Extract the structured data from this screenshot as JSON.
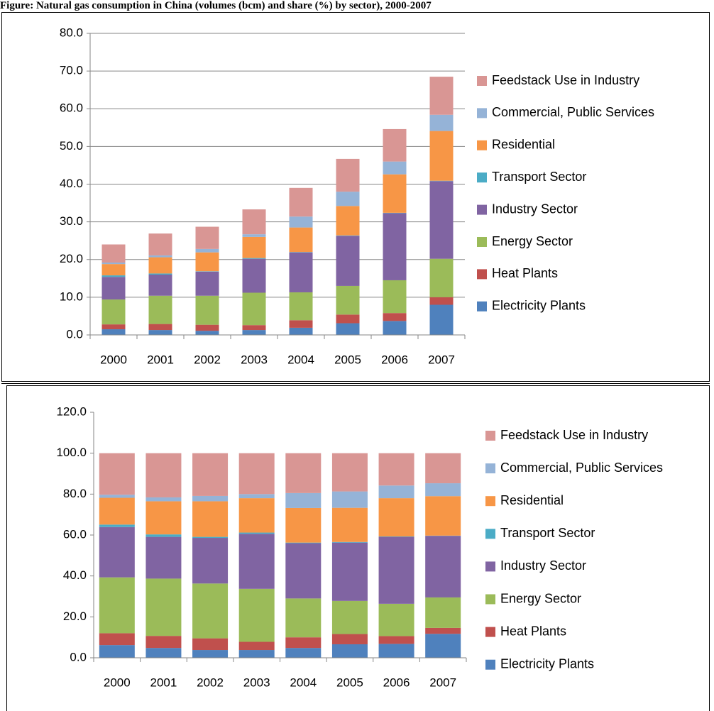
{
  "title": "Figure: Natural gas consumption in China (volumes (bcm) and share (%) by sector), 2000-2007",
  "chart_data": [
    {
      "type": "stacked_bar",
      "categories": [
        "2000",
        "2001",
        "2002",
        "2003",
        "2004",
        "2005",
        "2006",
        "2007"
      ],
      "ylim": [
        0,
        80
      ],
      "yticks": [
        {
          "value": 0,
          "label": "0.0"
        },
        {
          "value": 10,
          "label": "10.0"
        },
        {
          "value": 20,
          "label": "20.0"
        },
        {
          "value": 30,
          "label": "30.0"
        },
        {
          "value": 40,
          "label": "40.0"
        },
        {
          "value": 50,
          "label": "50.0"
        },
        {
          "value": 60,
          "label": "60.0"
        },
        {
          "value": 70,
          "label": "70.0"
        },
        {
          "value": 80,
          "label": "80.0"
        }
      ],
      "grid": true,
      "legend": "right",
      "series": [
        {
          "name": "Electricity Plants",
          "color": "#4f81bd",
          "values": [
            1.5,
            1.3,
            1.1,
            1.3,
            1.9,
            3.1,
            3.7,
            8.0
          ]
        },
        {
          "name": "Heat Plants",
          "color": "#c0504d",
          "values": [
            1.3,
            1.6,
            1.6,
            1.3,
            2.0,
            2.3,
            2.1,
            2.0
          ]
        },
        {
          "name": "Energy Sector",
          "color": "#9bbb59",
          "values": [
            6.6,
            7.5,
            7.7,
            8.6,
            7.4,
            7.6,
            8.7,
            10.2
          ]
        },
        {
          "name": "Industry Sector",
          "color": "#8064a2",
          "values": [
            6.0,
            5.6,
            6.4,
            9.0,
            10.6,
            13.3,
            17.8,
            20.6
          ]
        },
        {
          "name": "Transport Sector",
          "color": "#4bacc6",
          "values": [
            0.4,
            0.3,
            0.1,
            0.2,
            0.1,
            0.1,
            0.1,
            0.1
          ]
        },
        {
          "name": "Residential",
          "color": "#f79646",
          "values": [
            3.0,
            4.3,
            5.0,
            5.6,
            6.5,
            7.8,
            10.2,
            13.2
          ]
        },
        {
          "name": "Commercial, Public Services",
          "color": "#95b3d7",
          "values": [
            0.4,
            0.5,
            0.9,
            0.7,
            2.9,
            3.8,
            3.4,
            4.3
          ]
        },
        {
          "name": "Feedstack Use in Industry",
          "color": "#d99694",
          "values": [
            4.8,
            5.8,
            5.9,
            6.6,
            7.6,
            8.7,
            8.6,
            10.1
          ]
        }
      ]
    },
    {
      "type": "stacked_bar",
      "categories": [
        "2000",
        "2001",
        "2002",
        "2003",
        "2004",
        "2005",
        "2006",
        "2007"
      ],
      "ylim": [
        0,
        120
      ],
      "yticks": [
        {
          "value": 0,
          "label": "0.0"
        },
        {
          "value": 20,
          "label": "20.0"
        },
        {
          "value": 40,
          "label": "40.0"
        },
        {
          "value": 60,
          "label": "60.0"
        },
        {
          "value": 80,
          "label": "80.0"
        },
        {
          "value": 100,
          "label": "100.0"
        },
        {
          "value": 120,
          "label": "120.0"
        }
      ],
      "grid": false,
      "legend": "right",
      "series": [
        {
          "name": "Electricity Plants",
          "color": "#4f81bd",
          "values": [
            6.2,
            4.8,
            3.8,
            3.8,
            4.8,
            6.6,
            6.8,
            11.7
          ]
        },
        {
          "name": "Heat Plants",
          "color": "#c0504d",
          "values": [
            5.8,
            5.9,
            5.7,
            4.0,
            5.2,
            5.0,
            3.8,
            2.9
          ]
        },
        {
          "name": "Energy Sector",
          "color": "#9bbb59",
          "values": [
            27.3,
            28.0,
            26.8,
            25.9,
            19.0,
            16.2,
            15.8,
            14.9
          ]
        },
        {
          "name": "Industry Sector",
          "color": "#8064a2",
          "values": [
            24.6,
            20.4,
            22.3,
            26.9,
            27.0,
            28.5,
            32.7,
            30.1
          ]
        },
        {
          "name": "Transport Sector",
          "color": "#4bacc6",
          "values": [
            1.2,
            1.2,
            0.5,
            0.6,
            0.3,
            0.3,
            0.2,
            0.1
          ]
        },
        {
          "name": "Residential",
          "color": "#f79646",
          "values": [
            13.1,
            16.2,
            17.4,
            16.8,
            16.9,
            16.7,
            18.7,
            19.3
          ]
        },
        {
          "name": "Commercial, Public Services",
          "color": "#95b3d7",
          "values": [
            1.5,
            1.9,
            2.6,
            2.0,
            7.3,
            8.0,
            6.2,
            6.3
          ]
        },
        {
          "name": "Feedstack Use in Industry",
          "color": "#d99694",
          "values": [
            20.3,
            21.6,
            20.9,
            20.0,
            19.5,
            18.7,
            15.8,
            14.7
          ]
        }
      ]
    }
  ]
}
